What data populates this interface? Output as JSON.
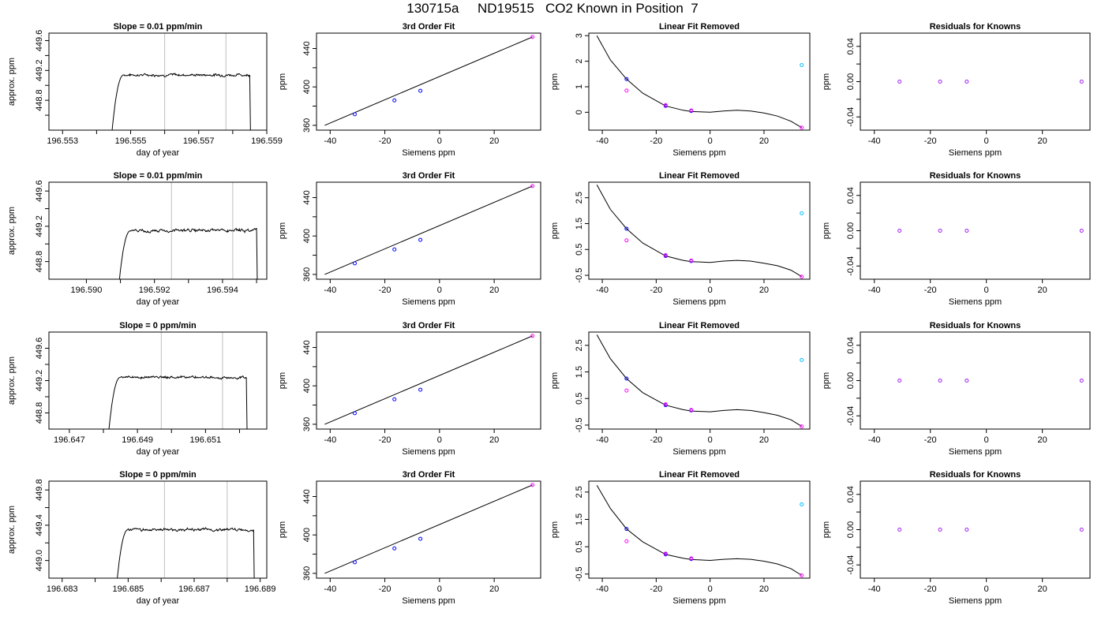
{
  "title": "130715a     ND19515   CO2 Known in Position  7",
  "colors": {
    "trace": "#000000",
    "vline": "#bebebe",
    "known_blue": "#0000ff",
    "known_magenta": "#ff00ff",
    "known_cyan": "#00bfff",
    "resid": "#a020f0",
    "frame": "#000000"
  },
  "chart_data": [
    {
      "type": "line",
      "id": "row1-trace",
      "title": "Slope =  0.01  ppm/min",
      "xlabel": "day of year",
      "ylabel": "approx. ppm",
      "xlim": [
        196.5526,
        196.559
      ],
      "ylim": [
        448.4,
        449.7
      ],
      "xticks": [
        196.553,
        196.554,
        196.555,
        196.556,
        196.557,
        196.558,
        196.559
      ],
      "xticklabels": [
        "196.553",
        "",
        "196.555",
        "",
        "196.557",
        "",
        "196.559"
      ],
      "yticks": [
        448.6,
        448.8,
        449.0,
        449.2,
        449.4,
        449.6
      ],
      "yticklabels": [
        "",
        "448.8",
        "",
        "449.2",
        "",
        "449.6"
      ],
      "vlines": [
        196.556,
        196.5578
      ],
      "trace": {
        "x_start": 196.5544,
        "x_end": 196.5585,
        "rise_to": 196.5548,
        "plateau": 449.14,
        "noise": 0.022
      }
    },
    {
      "type": "line",
      "series": "3rd Order Fit",
      "id": "row1-fit",
      "title": "3rd Order Fit",
      "xlabel": "Siemens ppm",
      "ylabel": "ppm",
      "xlim": [
        -45,
        37
      ],
      "ylim": [
        355,
        456
      ],
      "xticks": [
        -40,
        -20,
        0,
        20
      ],
      "xticklabels": [
        "-40",
        "-20",
        "0",
        "20"
      ],
      "yticks": [
        360,
        380,
        400,
        420,
        440
      ],
      "yticklabels": [
        "360",
        "",
        "400",
        "",
        "440"
      ],
      "points": [
        [
          -31,
          371.5,
          "blue"
        ],
        [
          -16.5,
          386,
          "blue"
        ],
        [
          -7,
          396,
          "blue"
        ],
        [
          34,
          452,
          "magenta"
        ]
      ],
      "line": [
        [
          -42,
          360
        ],
        [
          34,
          452
        ]
      ]
    },
    {
      "type": "scatter",
      "id": "row1-lin",
      "title": "Linear Fit Removed",
      "xlabel": "Siemens ppm",
      "ylabel": "ppm",
      "xlim": [
        -45,
        37
      ],
      "ylim": [
        -0.7,
        3.1
      ],
      "xticks": [
        -40,
        -20,
        0,
        20
      ],
      "xticklabels": [
        "-40",
        "-20",
        "0",
        "20"
      ],
      "yticks": [
        0,
        1,
        2,
        3
      ],
      "yticklabels": [
        "0",
        "1",
        "2",
        "3"
      ],
      "points": [
        [
          -31,
          1.3,
          "blue"
        ],
        [
          -31,
          0.85,
          "magenta"
        ],
        [
          -16.5,
          0.25,
          "blue"
        ],
        [
          -16.5,
          0.28,
          "magenta"
        ],
        [
          -7,
          0.05,
          "blue"
        ],
        [
          -7,
          0.07,
          "magenta"
        ],
        [
          34,
          1.85,
          "cyan"
        ],
        [
          34,
          -0.6,
          "magenta"
        ]
      ],
      "curve": [
        [
          -42,
          3.0
        ],
        [
          -37,
          2.05
        ],
        [
          -31,
          1.3
        ],
        [
          -25,
          0.75
        ],
        [
          -16.5,
          0.25
        ],
        [
          -10,
          0.08
        ],
        [
          -7,
          0.03
        ],
        [
          0,
          0.0
        ],
        [
          5,
          0.05
        ],
        [
          10,
          0.08
        ],
        [
          15,
          0.05
        ],
        [
          20,
          -0.03
        ],
        [
          25,
          -0.15
        ],
        [
          30,
          -0.35
        ],
        [
          34,
          -0.6
        ]
      ]
    },
    {
      "type": "scatter",
      "id": "row1-res",
      "title": "Residuals for Knowns",
      "xlabel": "Siemens ppm",
      "ylabel": "ppm",
      "xlim": [
        -45,
        37
      ],
      "ylim": [
        -0.055,
        0.055
      ],
      "xticks": [
        -40,
        -20,
        0,
        20
      ],
      "xticklabels": [
        "-40",
        "-20",
        "0",
        "20"
      ],
      "yticks": [
        -0.04,
        -0.02,
        0.0,
        0.02,
        0.04
      ],
      "yticklabels": [
        "-0.04",
        "",
        "0.00",
        "",
        "0.04"
      ],
      "points": [
        [
          -31,
          0
        ],
        [
          -16.5,
          0
        ],
        [
          -7,
          0
        ],
        [
          34,
          0
        ]
      ]
    },
    {
      "type": "line",
      "id": "row2-trace",
      "title": "Slope =  0.01  ppm/min",
      "xlabel": "day of year",
      "ylabel": "approx. ppm",
      "xlim": [
        196.5889,
        196.5953
      ],
      "ylim": [
        448.6,
        449.7
      ],
      "xticks": [
        196.59,
        196.591,
        196.592,
        196.593,
        196.594,
        196.595
      ],
      "xticklabels": [
        "196.590",
        "",
        "196.592",
        "",
        "196.594",
        ""
      ],
      "yticks": [
        448.8,
        449.0,
        449.2,
        449.4,
        449.6
      ],
      "yticklabels": [
        "448.8",
        "",
        "449.2",
        "",
        "449.6"
      ],
      "vlines": [
        196.5925,
        196.5943
      ],
      "trace": {
        "x_start": 196.5909,
        "x_end": 196.595,
        "rise_to": 196.5913,
        "plateau": 449.15,
        "noise": 0.022
      }
    },
    {
      "type": "line",
      "series": "3rd Order Fit",
      "id": "row2-fit",
      "title": "3rd Order Fit",
      "xlabel": "Siemens ppm",
      "ylabel": "ppm",
      "xlim": [
        -45,
        37
      ],
      "ylim": [
        355,
        456
      ],
      "xticks": [
        -40,
        -20,
        0,
        20
      ],
      "xticklabels": [
        "-40",
        "-20",
        "0",
        "20"
      ],
      "yticks": [
        360,
        380,
        400,
        420,
        440
      ],
      "yticklabels": [
        "360",
        "",
        "400",
        "",
        "440"
      ],
      "points": [
        [
          -31,
          371.5,
          "blue"
        ],
        [
          -16.5,
          386,
          "blue"
        ],
        [
          -7,
          396,
          "blue"
        ],
        [
          34,
          452,
          "magenta"
        ]
      ],
      "line": [
        [
          -42,
          360
        ],
        [
          34,
          452
        ]
      ]
    },
    {
      "type": "scatter",
      "id": "row2-lin",
      "title": "Linear Fit Removed",
      "xlabel": "Siemens ppm",
      "ylabel": "ppm",
      "xlim": [
        -45,
        37
      ],
      "ylim": [
        -0.65,
        3.1
      ],
      "xticks": [
        -40,
        -20,
        0,
        20
      ],
      "xticklabels": [
        "-40",
        "-20",
        "0",
        "20"
      ],
      "yticks": [
        -0.5,
        0.5,
        1.5,
        2.5
      ],
      "yticklabels": [
        "-0.5",
        "0.5",
        "1.5",
        "2.5"
      ],
      "points": [
        [
          -31,
          1.3,
          "blue"
        ],
        [
          -31,
          0.85,
          "magenta"
        ],
        [
          -16.5,
          0.25,
          "blue"
        ],
        [
          -16.5,
          0.28,
          "magenta"
        ],
        [
          -7,
          0.05,
          "blue"
        ],
        [
          -7,
          0.07,
          "magenta"
        ],
        [
          34,
          1.9,
          "cyan"
        ],
        [
          34,
          -0.55,
          "magenta"
        ]
      ],
      "curve": [
        [
          -42,
          3.0
        ],
        [
          -37,
          2.05
        ],
        [
          -31,
          1.3
        ],
        [
          -25,
          0.75
        ],
        [
          -16.5,
          0.25
        ],
        [
          -10,
          0.08
        ],
        [
          -7,
          0.03
        ],
        [
          0,
          0.0
        ],
        [
          5,
          0.05
        ],
        [
          10,
          0.08
        ],
        [
          15,
          0.05
        ],
        [
          20,
          -0.03
        ],
        [
          25,
          -0.13
        ],
        [
          30,
          -0.3
        ],
        [
          34,
          -0.55
        ]
      ]
    },
    {
      "type": "scatter",
      "id": "row2-res",
      "title": "Residuals for Knowns",
      "xlabel": "Siemens ppm",
      "ylabel": "ppm",
      "xlim": [
        -45,
        37
      ],
      "ylim": [
        -0.055,
        0.055
      ],
      "xticks": [
        -40,
        -20,
        0,
        20
      ],
      "xticklabels": [
        "-40",
        "-20",
        "0",
        "20"
      ],
      "yticks": [
        -0.04,
        -0.02,
        0.0,
        0.02,
        0.04
      ],
      "yticklabels": [
        "-0.04",
        "",
        "0.00",
        "",
        "0.04"
      ],
      "points": [
        [
          -31,
          0
        ],
        [
          -16.5,
          0
        ],
        [
          -7,
          0
        ],
        [
          34,
          0
        ]
      ]
    },
    {
      "type": "line",
      "id": "row3-trace",
      "title": "Slope =  0  ppm/min",
      "xlabel": "day of year",
      "ylabel": "approx. ppm",
      "xlim": [
        196.6464,
        196.6528
      ],
      "ylim": [
        448.6,
        449.8
      ],
      "xticks": [
        196.647,
        196.648,
        196.649,
        196.65,
        196.651,
        196.652
      ],
      "xticklabels": [
        "196.647",
        "",
        "196.649",
        "",
        "196.651",
        ""
      ],
      "yticks": [
        448.8,
        449.0,
        449.2,
        449.4,
        449.6
      ],
      "yticklabels": [
        "448.8",
        "",
        "449.2",
        "",
        "449.6"
      ],
      "vlines": [
        196.6497,
        196.6515
      ],
      "trace": {
        "x_start": 196.6481,
        "x_end": 196.6522,
        "rise_to": 196.6485,
        "plateau": 449.24,
        "noise": 0.018
      }
    },
    {
      "type": "line",
      "series": "3rd Order Fit",
      "id": "row3-fit",
      "title": "3rd Order Fit",
      "xlabel": "Siemens ppm",
      "ylabel": "ppm",
      "xlim": [
        -45,
        37
      ],
      "ylim": [
        355,
        456
      ],
      "xticks": [
        -40,
        -20,
        0,
        20
      ],
      "xticklabels": [
        "-40",
        "-20",
        "0",
        "20"
      ],
      "yticks": [
        360,
        380,
        400,
        420,
        440
      ],
      "yticklabels": [
        "360",
        "",
        "400",
        "",
        "440"
      ],
      "points": [
        [
          -31,
          371.5,
          "blue"
        ],
        [
          -16.5,
          386,
          "blue"
        ],
        [
          -7,
          396,
          "blue"
        ],
        [
          34,
          452,
          "magenta"
        ]
      ],
      "line": [
        [
          -42,
          360
        ],
        [
          34,
          452
        ]
      ]
    },
    {
      "type": "scatter",
      "id": "row3-lin",
      "title": "Linear Fit Removed",
      "xlabel": "Siemens ppm",
      "ylabel": "ppm",
      "xlim": [
        -45,
        37
      ],
      "ylim": [
        -0.65,
        3.0
      ],
      "xticks": [
        -40,
        -20,
        0,
        20
      ],
      "xticklabels": [
        "-40",
        "-20",
        "0",
        "20"
      ],
      "yticks": [
        -0.5,
        0.5,
        1.5,
        2.5
      ],
      "yticklabels": [
        "-0.5",
        "0.5",
        "1.5",
        "2.5"
      ],
      "points": [
        [
          -31,
          1.25,
          "blue"
        ],
        [
          -31,
          0.8,
          "magenta"
        ],
        [
          -16.5,
          0.25,
          "blue"
        ],
        [
          -16.5,
          0.28,
          "magenta"
        ],
        [
          -7,
          0.05,
          "blue"
        ],
        [
          -7,
          0.07,
          "magenta"
        ],
        [
          34,
          1.95,
          "cyan"
        ],
        [
          34,
          -0.55,
          "magenta"
        ]
      ],
      "curve": [
        [
          -42,
          2.9
        ],
        [
          -37,
          2.0
        ],
        [
          -31,
          1.25
        ],
        [
          -25,
          0.72
        ],
        [
          -16.5,
          0.25
        ],
        [
          -10,
          0.08
        ],
        [
          -7,
          0.03
        ],
        [
          0,
          0.0
        ],
        [
          5,
          0.05
        ],
        [
          10,
          0.08
        ],
        [
          15,
          0.05
        ],
        [
          20,
          -0.03
        ],
        [
          25,
          -0.13
        ],
        [
          30,
          -0.3
        ],
        [
          34,
          -0.55
        ]
      ]
    },
    {
      "type": "scatter",
      "id": "row3-res",
      "title": "Residuals for Knowns",
      "xlabel": "Siemens ppm",
      "ylabel": "ppm",
      "xlim": [
        -45,
        37
      ],
      "ylim": [
        -0.055,
        0.055
      ],
      "xticks": [
        -40,
        -20,
        0,
        20
      ],
      "xticklabels": [
        "-40",
        "-20",
        "0",
        "20"
      ],
      "yticks": [
        -0.04,
        -0.02,
        0.0,
        0.02,
        0.04
      ],
      "yticklabels": [
        "-0.04",
        "",
        "0.00",
        "",
        "0.04"
      ],
      "points": [
        [
          -31,
          0
        ],
        [
          -16.5,
          0
        ],
        [
          -7,
          0
        ],
        [
          34,
          0
        ]
      ]
    },
    {
      "type": "line",
      "id": "row4-trace",
      "title": "Slope =  0  ppm/min",
      "xlabel": "day of year",
      "ylabel": "approx. ppm",
      "xlim": [
        196.6826,
        196.6892
      ],
      "ylim": [
        448.8,
        449.9
      ],
      "xticks": [
        196.683,
        196.684,
        196.685,
        196.686,
        196.687,
        196.688,
        196.689
      ],
      "xticklabels": [
        "196.683",
        "",
        "196.685",
        "",
        "196.687",
        "",
        "196.689"
      ],
      "yticks": [
        449.0,
        449.2,
        449.4,
        449.6,
        449.8
      ],
      "yticklabels": [
        "449.0",
        "",
        "449.4",
        "",
        "449.8"
      ],
      "vlines": [
        196.6861,
        196.688
      ],
      "trace": {
        "x_start": 196.6846,
        "x_end": 196.6888,
        "rise_to": 196.685,
        "plateau": 449.35,
        "noise": 0.018
      }
    },
    {
      "type": "line",
      "series": "3rd Order Fit",
      "id": "row4-fit",
      "title": "3rd Order Fit",
      "xlabel": "Siemens ppm",
      "ylabel": "ppm",
      "xlim": [
        -45,
        37
      ],
      "ylim": [
        355,
        456
      ],
      "xticks": [
        -40,
        -20,
        0,
        20
      ],
      "xticklabels": [
        "-40",
        "-20",
        "0",
        "20"
      ],
      "yticks": [
        360,
        380,
        400,
        420,
        440
      ],
      "yticklabels": [
        "360",
        "",
        "400",
        "",
        "440"
      ],
      "points": [
        [
          -31,
          371.5,
          "blue"
        ],
        [
          -16.5,
          386,
          "blue"
        ],
        [
          -7,
          396,
          "blue"
        ],
        [
          34,
          452,
          "magenta"
        ]
      ],
      "line": [
        [
          -42,
          360
        ],
        [
          34,
          452
        ]
      ]
    },
    {
      "type": "scatter",
      "id": "row4-lin",
      "title": "Linear Fit Removed",
      "xlabel": "Siemens ppm",
      "ylabel": "ppm",
      "xlim": [
        -45,
        37
      ],
      "ylim": [
        -0.65,
        2.9
      ],
      "xticks": [
        -40,
        -20,
        0,
        20
      ],
      "xticklabels": [
        "-40",
        "-20",
        "0",
        "20"
      ],
      "yticks": [
        -0.5,
        0.5,
        1.5,
        2.5
      ],
      "yticklabels": [
        "-0.5",
        "0.5",
        "1.5",
        "2.5"
      ],
      "points": [
        [
          -31,
          1.15,
          "blue"
        ],
        [
          -31,
          0.7,
          "magenta"
        ],
        [
          -16.5,
          0.22,
          "blue"
        ],
        [
          -16.5,
          0.25,
          "magenta"
        ],
        [
          -7,
          0.05,
          "blue"
        ],
        [
          -7,
          0.07,
          "magenta"
        ],
        [
          34,
          2.05,
          "cyan"
        ],
        [
          34,
          -0.55,
          "magenta"
        ]
      ],
      "curve": [
        [
          -42,
          2.75
        ],
        [
          -37,
          1.9
        ],
        [
          -31,
          1.15
        ],
        [
          -25,
          0.68
        ],
        [
          -16.5,
          0.22
        ],
        [
          -10,
          0.08
        ],
        [
          -7,
          0.03
        ],
        [
          0,
          0.0
        ],
        [
          5,
          0.04
        ],
        [
          10,
          0.06
        ],
        [
          15,
          0.04
        ],
        [
          20,
          -0.03
        ],
        [
          25,
          -0.13
        ],
        [
          30,
          -0.3
        ],
        [
          34,
          -0.55
        ]
      ]
    },
    {
      "type": "scatter",
      "id": "row4-res",
      "title": "Residuals for Knowns",
      "xlabel": "Siemens ppm",
      "ylabel": "ppm",
      "xlim": [
        -45,
        37
      ],
      "ylim": [
        -0.055,
        0.055
      ],
      "xticks": [
        -40,
        -20,
        0,
        20
      ],
      "xticklabels": [
        "-40",
        "-20",
        "0",
        "20"
      ],
      "yticks": [
        -0.04,
        -0.02,
        0.0,
        0.02,
        0.04
      ],
      "yticklabels": [
        "-0.04",
        "",
        "0.00",
        "",
        "0.04"
      ],
      "points": [
        [
          -31,
          0
        ],
        [
          -16.5,
          0
        ],
        [
          -7,
          0
        ],
        [
          34,
          0
        ]
      ]
    }
  ]
}
